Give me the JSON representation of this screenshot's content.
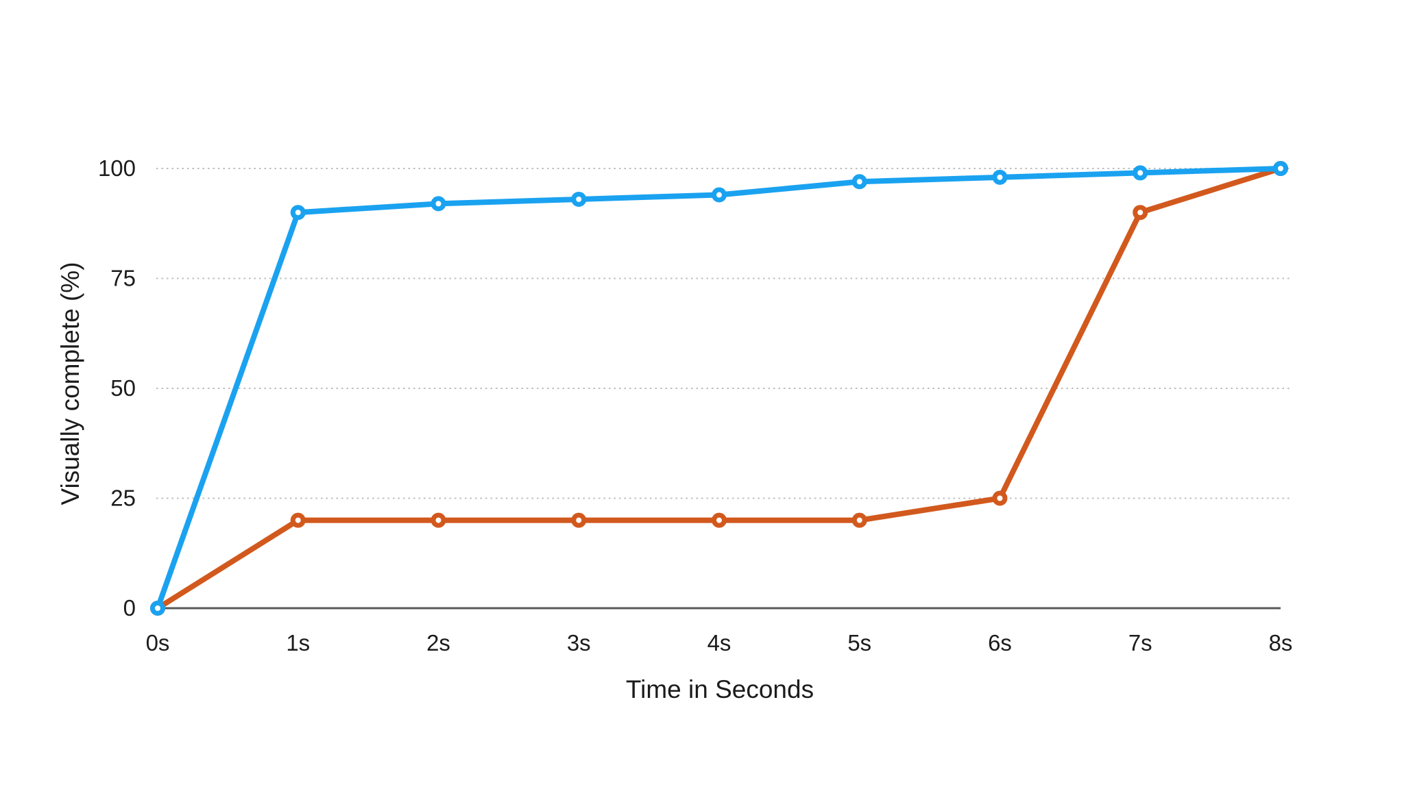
{
  "chart_data": {
    "type": "line",
    "title": "",
    "xlabel": "Time in Seconds",
    "ylabel": "Visually complete (%)",
    "categories": [
      "0s",
      "1s",
      "2s",
      "3s",
      "4s",
      "5s",
      "6s",
      "7s",
      "8s"
    ],
    "x_seconds": [
      0,
      1,
      2,
      3,
      4,
      5,
      6,
      7,
      8
    ],
    "series": [
      {
        "name": "orange-series",
        "color": "#d2591d",
        "values": [
          0,
          20,
          20,
          20,
          20,
          20,
          25,
          90,
          100
        ]
      },
      {
        "name": "blue-series",
        "color": "#1aa2f0",
        "values": [
          0,
          90,
          92,
          93,
          94,
          97,
          98,
          99,
          100
        ]
      }
    ],
    "yticks": [
      0,
      25,
      50,
      75,
      100
    ],
    "ylim": [
      0,
      100
    ],
    "grid": "horizontal-dotted",
    "legend_position": "none",
    "marker_style": "open-circle",
    "line_width": 8,
    "colors": {
      "background": "#ffffff",
      "axis_line": "#595959",
      "gridline": "#bdbdbd",
      "text": "#1c1c1c"
    }
  }
}
